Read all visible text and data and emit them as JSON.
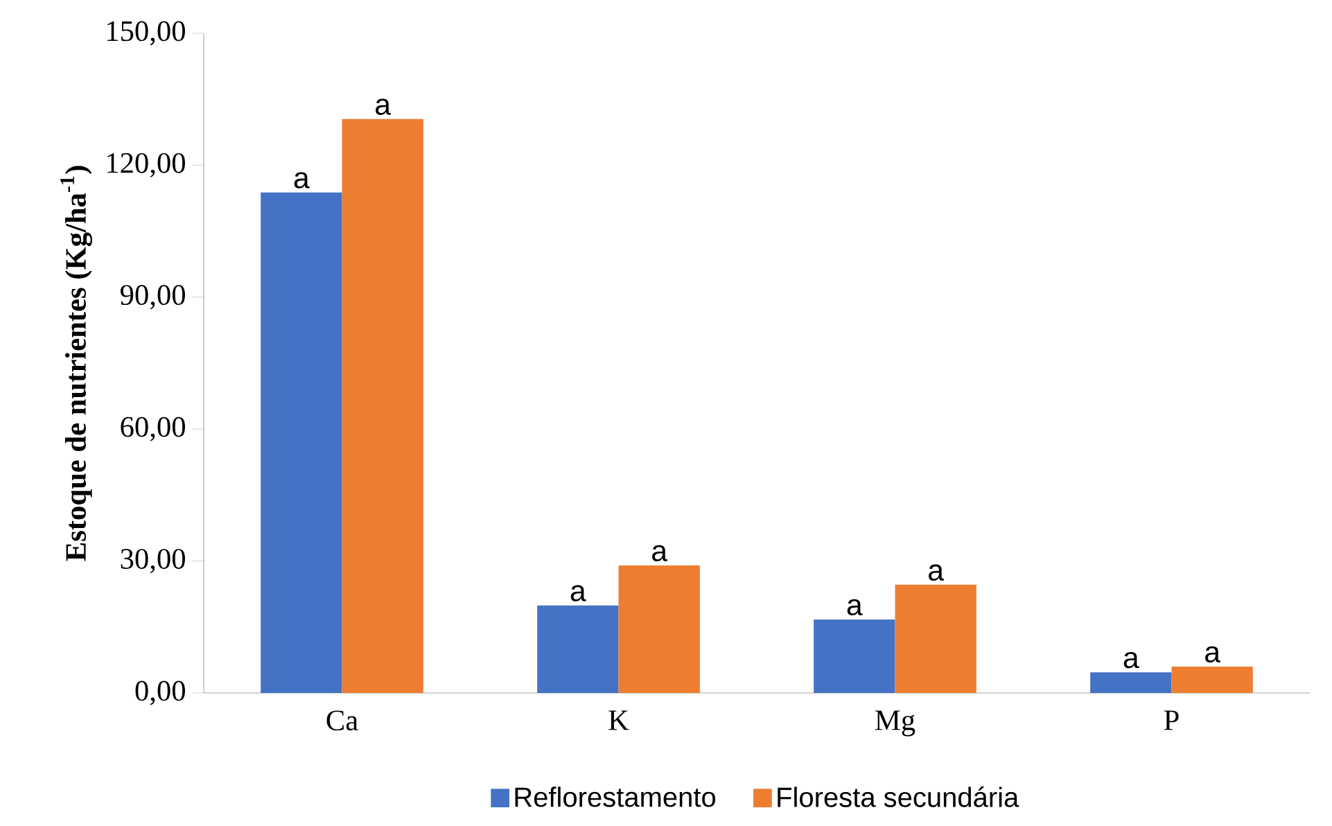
{
  "chart_data": {
    "type": "bar",
    "ylabel": "**Estoque de nutrientes (Kg/ha$^{-1}$)**",
    "categories": [
      "Ca",
      "K",
      "Mg",
      "P"
    ],
    "series": [
      {
        "name": "Reflorestamento",
        "color": "#4472c4",
        "values": [
          113.8,
          19.9,
          16.7,
          4.7
        ]
      },
      {
        "name": "Floresta secundária",
        "color": "#ed7d31",
        "values": [
          130.5,
          29.0,
          24.6,
          6.0
        ]
      }
    ],
    "ylim": [
      0,
      150
    ],
    "yticks": [
      {
        "value": 0,
        "label": "0,00"
      },
      {
        "value": 30,
        "label": "30,00"
      },
      {
        "value": 60,
        "label": "60,00"
      },
      {
        "value": 90,
        "label": "90,00"
      },
      {
        "value": 120,
        "label": "120,00"
      },
      {
        "value": 150,
        "label": "150,00"
      }
    ],
    "annotations": [
      {
        "text": "a",
        "x": "Ca",
        "y": 113.8
      },
      {
        "text": "a",
        "x": "Ca",
        "y": 130.5
      },
      {
        "text": "a",
        "x": "K",
        "y": 19.9
      },
      {
        "text": "a",
        "x": "K",
        "y": 29.0
      },
      {
        "text": "a",
        "x": "Mg",
        "y": 16.7
      },
      {
        "text": "a",
        "x": "Mg",
        "y": 24.6
      },
      {
        "text": "a",
        "x": "P",
        "y": 4.7
      },
      {
        "text": "a",
        "x": "P",
        "y": 6.0
      }
    ],
    "grid": false,
    "legend": "bottom"
  }
}
